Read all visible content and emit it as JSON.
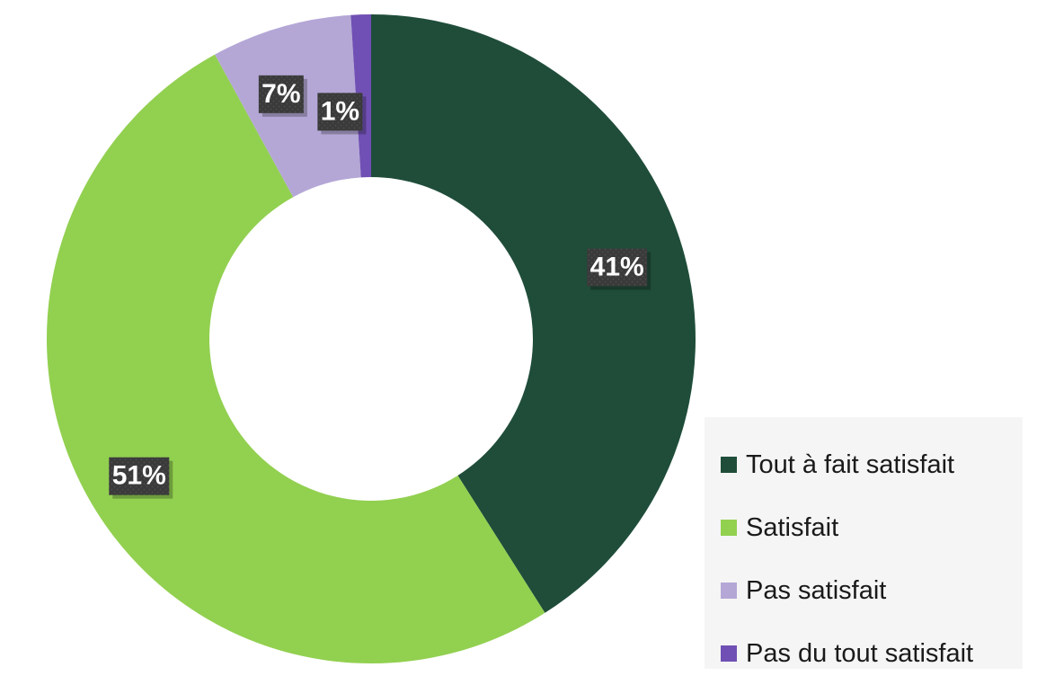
{
  "chart_data": {
    "type": "pie",
    "donut": true,
    "categories": [
      "Tout à fait satisfait",
      "Satisfait",
      "Pas satisfait",
      "Pas du tout satisfait"
    ],
    "values": [
      41,
      51,
      7,
      1
    ],
    "data_labels": [
      "41%",
      "51%",
      "7%",
      "1%"
    ],
    "colors": [
      "#1f4d3a",
      "#92d050",
      "#b4a7d6",
      "#7050b4"
    ],
    "legend_position": "bottom-right",
    "start_angle_deg": 0,
    "direction": "clockwise"
  }
}
